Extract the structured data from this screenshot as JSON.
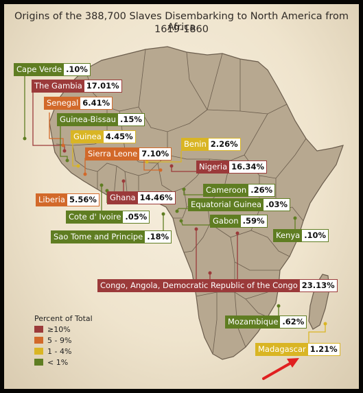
{
  "title": {
    "line1": "Origins of the 388,700 Slaves Disembarking to North America from Africa",
    "line2": "1619-1860"
  },
  "colors": {
    "red": "#9b3a3a",
    "orange": "#d2692a",
    "yellow": "#d9b524",
    "green": "#5f7d22",
    "land": "#b7a890",
    "border": "#6a5c4c",
    "arrow": "#e02020"
  },
  "regions": [
    {
      "name": "Cape Verde",
      "pct": ".10%",
      "tier": "g"
    },
    {
      "name": "The Gambia",
      "pct": "17.01%",
      "tier": "r"
    },
    {
      "name": "Senegal",
      "pct": "6.41%",
      "tier": "o"
    },
    {
      "name": "Guinea-Bissau",
      "pct": ".15%",
      "tier": "g"
    },
    {
      "name": "Guinea",
      "pct": "4.45%",
      "tier": "y"
    },
    {
      "name": "Sierra Leone",
      "pct": "7.10%",
      "tier": "o"
    },
    {
      "name": "Benin",
      "pct": "2.26%",
      "tier": "y"
    },
    {
      "name": "Nigeria",
      "pct": "16.34%",
      "tier": "r"
    },
    {
      "name": "Cameroon",
      "pct": ".26%",
      "tier": "g"
    },
    {
      "name": "Liberia",
      "pct": "5.56%",
      "tier": "o"
    },
    {
      "name": "Ghana",
      "pct": "14.46%",
      "tier": "r"
    },
    {
      "name": "Equatorial Guinea",
      "pct": ".03%",
      "tier": "g"
    },
    {
      "name": "Cote d' Ivoire",
      "pct": ".05%",
      "tier": "g"
    },
    {
      "name": "Gabon",
      "pct": ".59%",
      "tier": "g"
    },
    {
      "name": "Sao Tome and Principe",
      "pct": ".18%",
      "tier": "g"
    },
    {
      "name": "Kenya",
      "pct": ".10%",
      "tier": "g"
    },
    {
      "name": "Congo, Angola, Democratic Republic of the Congo",
      "pct": "23.13%",
      "tier": "r"
    },
    {
      "name": "Mozambique",
      "pct": ".62%",
      "tier": "g"
    },
    {
      "name": "Madagascar",
      "pct": "1.21%",
      "tier": "y"
    }
  ],
  "legend": {
    "title": "Percent of Total",
    "items": [
      {
        "label": "≥10%",
        "tier": "r"
      },
      {
        "label": "5 - 9%",
        "tier": "o"
      },
      {
        "label": "1 - 4%",
        "tier": "y"
      },
      {
        "label": "< 1%",
        "tier": "g"
      }
    ]
  }
}
